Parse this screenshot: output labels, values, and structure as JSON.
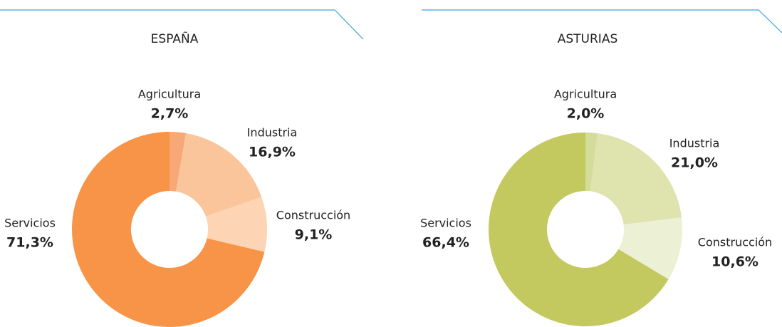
{
  "chart_data": [
    {
      "type": "pie",
      "title": "ESPAÑA",
      "categories": [
        "Agricultura",
        "Industria",
        "Construcción",
        "Servicios"
      ],
      "values": [
        2.7,
        16.9,
        9.1,
        71.3
      ],
      "value_labels": [
        "2,7%",
        "16,9%",
        "9,1%",
        "71,3%"
      ],
      "colors": [
        "#f7a877",
        "#fbc59c",
        "#fdd5b4",
        "#f79448"
      ]
    },
    {
      "type": "pie",
      "title": "ASTURIAS",
      "categories": [
        "Agricultura",
        "Industria",
        "Construcción",
        "Servicios"
      ],
      "values": [
        2.0,
        21.0,
        10.6,
        66.4
      ],
      "value_labels": [
        "2,0%",
        "21,0%",
        "10,6%",
        "66,4%"
      ],
      "colors": [
        "#d4dc9c",
        "#dfe3ad",
        "#ecf0d4",
        "#c3c95f"
      ]
    }
  ]
}
